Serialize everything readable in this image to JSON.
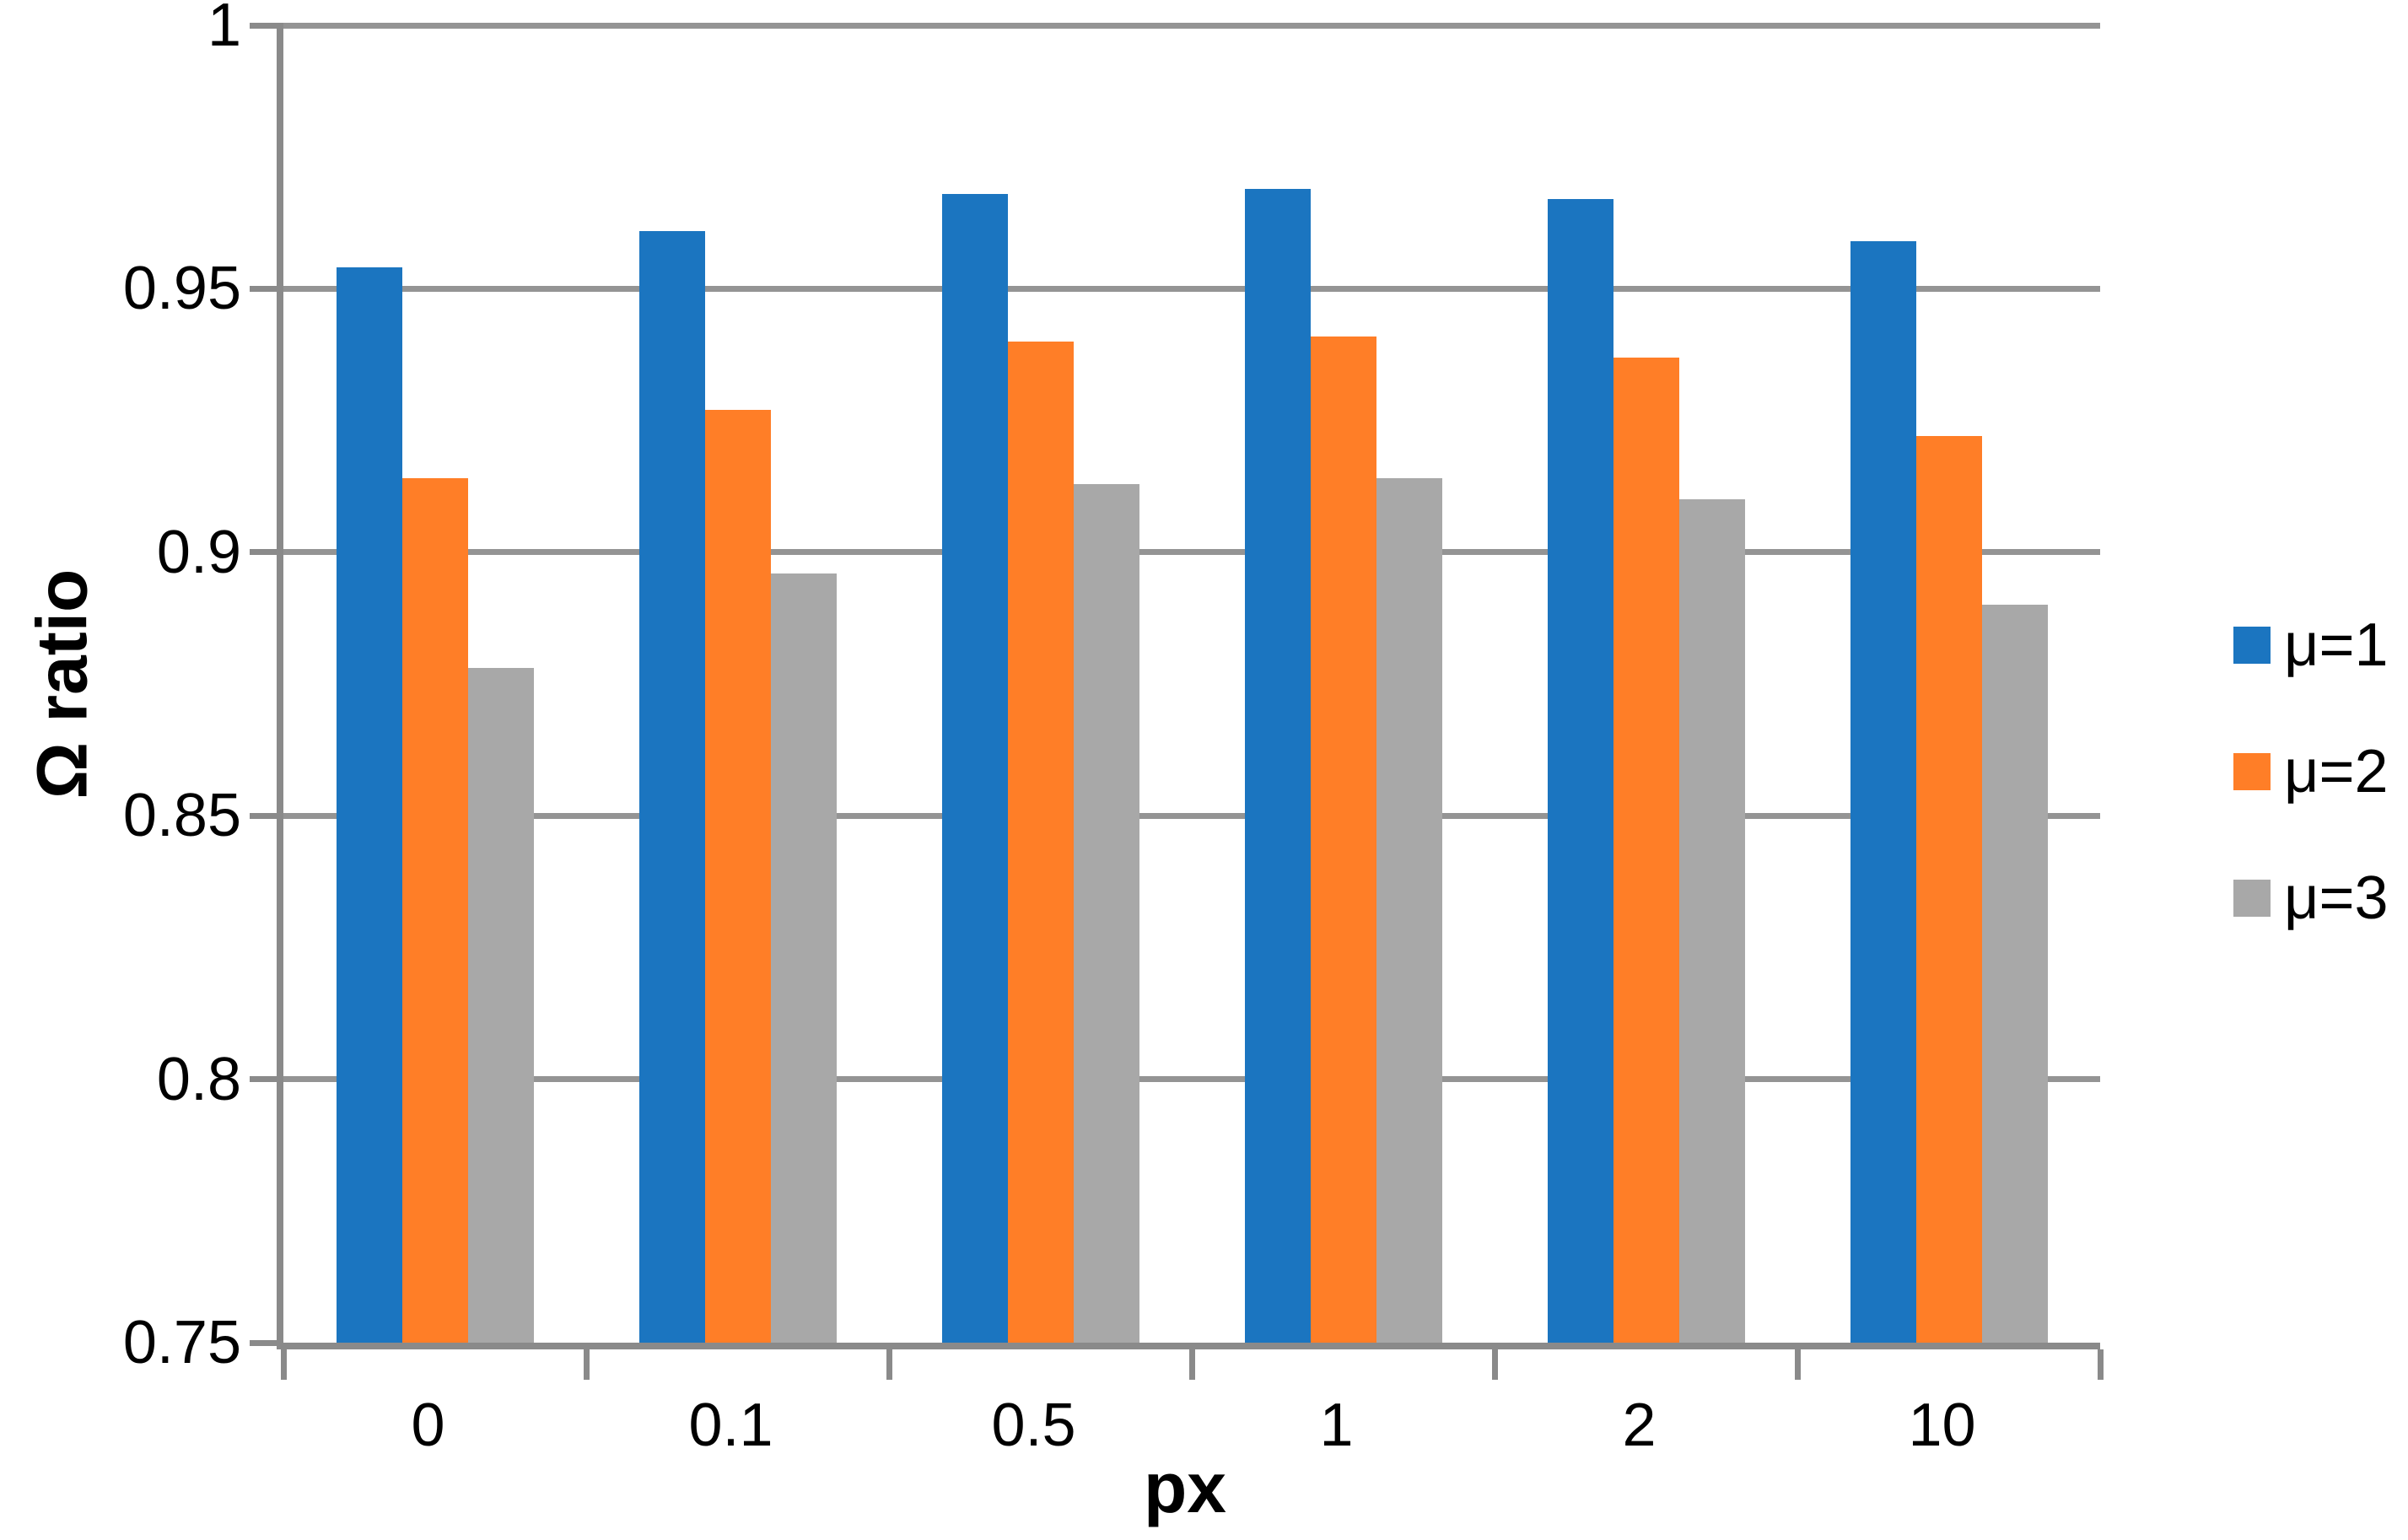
{
  "chart_data": {
    "type": "bar",
    "title": "",
    "xlabel": "px",
    "ylabel": "Ω ratio",
    "categories": [
      "0",
      "0.1",
      "0.5",
      "1",
      "2",
      "10"
    ],
    "series": [
      {
        "name": "μ=1",
        "color": "#1b75c0",
        "values": [
          0.954,
          0.961,
          0.968,
          0.969,
          0.967,
          0.959
        ]
      },
      {
        "name": "μ=2",
        "color": "#ff7e27",
        "values": [
          0.914,
          0.927,
          0.94,
          0.941,
          0.937,
          0.922
        ]
      },
      {
        "name": "μ=3",
        "color": "#a8a8a8",
        "values": [
          0.878,
          0.896,
          0.913,
          0.914,
          0.91,
          0.89
        ]
      }
    ],
    "ylim": [
      0.75,
      1.0
    ],
    "y_ticks": [
      1,
      0.95,
      0.9,
      0.85,
      0.8,
      0.75
    ],
    "y_tick_labels": [
      "1",
      "0.95",
      "0.9",
      "0.85",
      "0.8",
      "0.75"
    ],
    "grid": "horizontal",
    "legend_position": "right",
    "colors": {
      "gridline": "#949494",
      "axis": "#8a8a8a",
      "text": "#000000",
      "background": "#ffffff"
    }
  }
}
